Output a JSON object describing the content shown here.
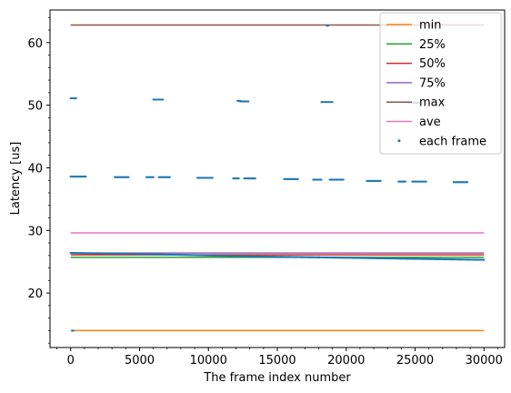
{
  "chart_data": {
    "type": "line",
    "title": "",
    "xlabel": "The frame index number",
    "ylabel": "Latency [us]",
    "xlim": [
      -1500,
      31500
    ],
    "ylim": [
      11.3,
      65.2
    ],
    "xticks": [
      0,
      5000,
      10000,
      15000,
      20000,
      25000,
      30000
    ],
    "xtick_labels": [
      "0",
      "5000",
      "10000",
      "15000",
      "20000",
      "25000",
      "30000"
    ],
    "yticks": [
      20,
      30,
      40,
      50,
      60
    ],
    "ytick_labels": [
      "20",
      "30",
      "40",
      "50",
      "60"
    ],
    "grid": false,
    "legend_placement": "top-right",
    "series": [
      {
        "name": "min",
        "kind": "line",
        "color": "#ff7f0e",
        "x": [
          0,
          30000
        ],
        "y": [
          14.0,
          14.0
        ]
      },
      {
        "name": "25%",
        "kind": "line",
        "color": "#2ca02c",
        "x": [
          0,
          30000
        ],
        "y": [
          25.7,
          25.7
        ]
      },
      {
        "name": "50%",
        "kind": "line",
        "color": "#d62728",
        "x": [
          0,
          30000
        ],
        "y": [
          26.1,
          26.1
        ]
      },
      {
        "name": "75%",
        "kind": "line",
        "color": "#9467bd",
        "x": [
          0,
          30000
        ],
        "y": [
          26.4,
          26.4
        ]
      },
      {
        "name": "max",
        "kind": "line",
        "color": "#8c564b",
        "x": [
          0,
          30000
        ],
        "y": [
          62.8,
          62.8
        ]
      },
      {
        "name": "ave",
        "kind": "line",
        "color": "#e377c2",
        "x": [
          0,
          30000
        ],
        "y": [
          29.6,
          29.6
        ]
      },
      {
        "name": "each frame",
        "kind": "points",
        "color": "#1f77b4",
        "runs": [
          {
            "y0": 26.4,
            "y1": 26.2,
            "x": [
              0,
              6000
            ]
          },
          {
            "y0": 26.2,
            "y1": 25.9,
            "x": [
              6000,
              12000
            ]
          },
          {
            "y0": 25.9,
            "y1": 25.7,
            "x": [
              12000,
              18000
            ]
          },
          {
            "y0": 25.7,
            "y1": 25.5,
            "x": [
              18000,
              24000
            ]
          },
          {
            "y0": 25.5,
            "y1": 25.3,
            "x": [
              24000,
              30000
            ]
          },
          {
            "y0": 38.6,
            "y1": 38.6,
            "x": [
              0,
              1100
            ]
          },
          {
            "y0": 38.5,
            "y1": 38.5,
            "x": [
              3200,
              4200
            ]
          },
          {
            "y0": 38.5,
            "y1": 38.5,
            "x": [
              5500,
              6000
            ]
          },
          {
            "y0": 38.5,
            "y1": 38.5,
            "x": [
              6400,
              7200
            ]
          },
          {
            "y0": 38.4,
            "y1": 38.4,
            "x": [
              9200,
              10300
            ]
          },
          {
            "y0": 38.3,
            "y1": 38.3,
            "x": [
              11800,
              12200
            ]
          },
          {
            "y0": 38.3,
            "y1": 38.3,
            "x": [
              12600,
              13400
            ]
          },
          {
            "y0": 38.2,
            "y1": 38.2,
            "x": [
              15500,
              16500
            ]
          },
          {
            "y0": 38.1,
            "y1": 38.1,
            "x": [
              17600,
              18200
            ]
          },
          {
            "y0": 38.1,
            "y1": 38.1,
            "x": [
              18800,
              19800
            ]
          },
          {
            "y0": 37.9,
            "y1": 37.9,
            "x": [
              21500,
              22500
            ]
          },
          {
            "y0": 37.8,
            "y1": 37.8,
            "x": [
              23800,
              24300
            ]
          },
          {
            "y0": 37.8,
            "y1": 37.8,
            "x": [
              24800,
              25800
            ]
          },
          {
            "y0": 37.7,
            "y1": 37.7,
            "x": [
              27800,
              28800
            ]
          },
          {
            "y0": 51.1,
            "y1": 51.1,
            "x": [
              0,
              400
            ]
          },
          {
            "y0": 50.9,
            "y1": 50.9,
            "x": [
              6000,
              6700
            ]
          },
          {
            "y0": 50.7,
            "y1": 50.7,
            "x": [
              12100,
              12300
            ]
          },
          {
            "y0": 50.6,
            "y1": 50.6,
            "x": [
              12300,
              12900
            ]
          },
          {
            "y0": 50.5,
            "y1": 50.5,
            "x": [
              18200,
              19000
            ]
          },
          {
            "y0": 50.4,
            "y1": 50.4,
            "x": [
              24500,
              25300
            ]
          },
          {
            "y0": 14.0,
            "y1": 14.0,
            "x": [
              100,
              200
            ]
          },
          {
            "y0": 62.7,
            "y1": 62.7,
            "x": [
              18600,
              18700
            ]
          }
        ]
      }
    ]
  }
}
